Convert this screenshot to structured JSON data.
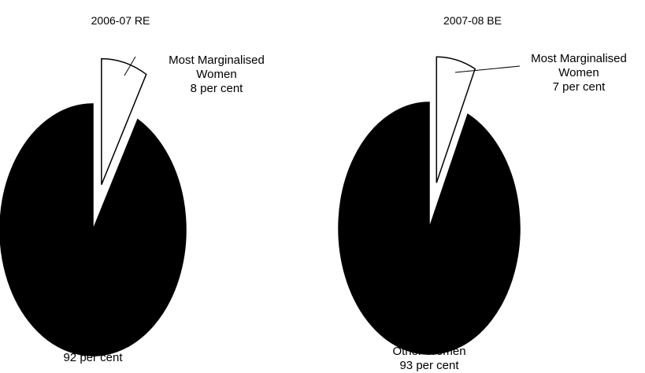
{
  "chart_data": [
    {
      "type": "pie",
      "title": "2006-07 RE",
      "categories": [
        "Most Marginalised Women",
        "Other Women"
      ],
      "values": [
        8,
        92
      ],
      "value_labels": [
        "8 per cent",
        "92 per cent"
      ],
      "colors": [
        "#ffffff",
        "#000000"
      ]
    },
    {
      "type": "pie",
      "title": "2007-08 BE",
      "categories": [
        "Most Marginalised Women",
        "Other Women"
      ],
      "values": [
        7,
        93
      ],
      "value_labels": [
        "7 per cent",
        "93 per cent"
      ],
      "colors": [
        "#ffffff",
        "#000000"
      ]
    }
  ]
}
